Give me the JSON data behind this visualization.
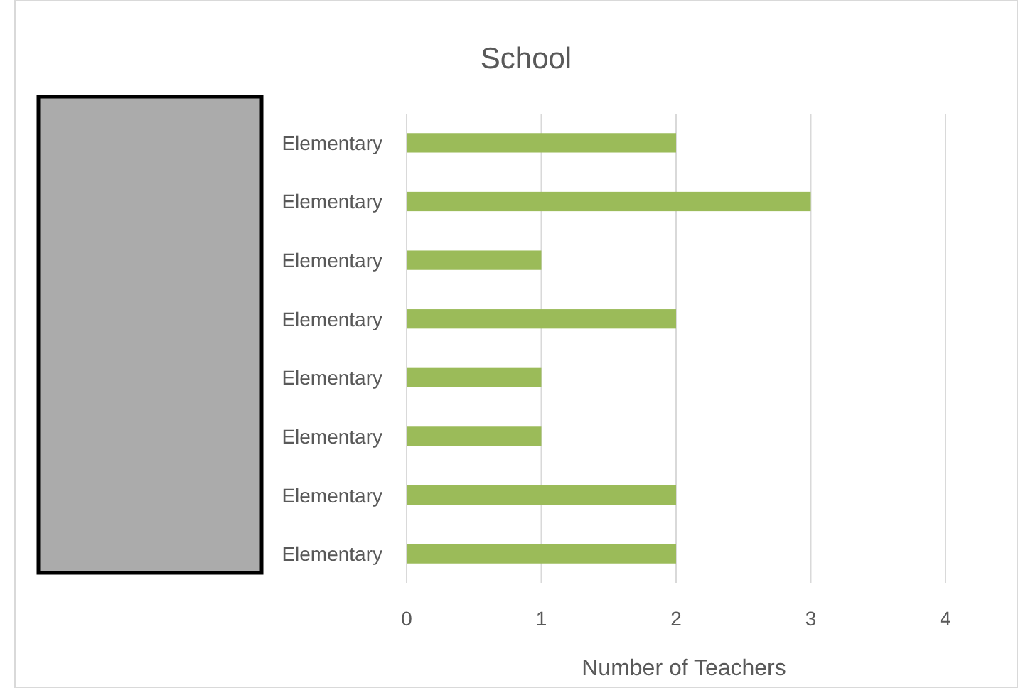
{
  "chart_data": {
    "type": "bar",
    "orientation": "horizontal",
    "title": "School",
    "xlabel": "Number of Teachers",
    "categories": [
      "Elementary",
      "Elementary",
      "Elementary",
      "Elementary",
      "Elementary",
      "Elementary",
      "Elementary",
      "Elementary"
    ],
    "values": [
      2,
      3,
      1,
      2,
      1,
      1,
      2,
      2
    ],
    "color": "#9bbb59",
    "xlim": [
      0,
      4
    ],
    "xticks": [
      0,
      1,
      2,
      3,
      4
    ],
    "grid": "x"
  }
}
